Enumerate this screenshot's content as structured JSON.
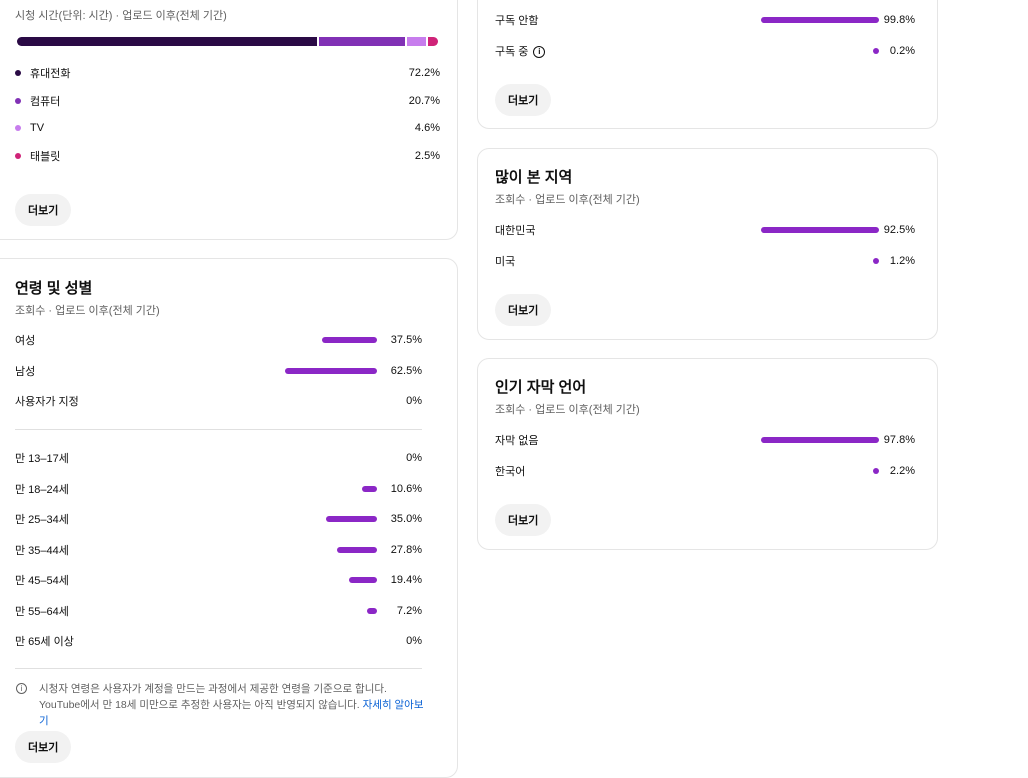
{
  "device": {
    "subtitle": "시청 시간(단위: 시간) · 업로드 이후(전체 기간)",
    "items": [
      {
        "label": "휴대전화",
        "value": 72.2,
        "display": "72.2%",
        "color": "#2a0a45"
      },
      {
        "label": "컴퓨터",
        "value": 20.7,
        "display": "20.7%",
        "color": "#8131b5"
      },
      {
        "label": "TV",
        "value": 4.6,
        "display": "4.6%",
        "color": "#c77ded"
      },
      {
        "label": "태블릿",
        "value": 2.5,
        "display": "2.5%",
        "color": "#cf2378"
      }
    ],
    "more": "더보기"
  },
  "age_gender": {
    "title": "연령 및 성별",
    "subtitle": "조회수 · 업로드 이후(전체 기간)",
    "gender": [
      {
        "label": "여성",
        "value": 37.5,
        "display": "37.5%"
      },
      {
        "label": "남성",
        "value": 62.5,
        "display": "62.5%"
      },
      {
        "label": "사용자가 지정",
        "value": 0,
        "display": "0%"
      }
    ],
    "ages": [
      {
        "label": "만 13–17세",
        "value": 0,
        "display": "0%"
      },
      {
        "label": "만 18–24세",
        "value": 10.6,
        "display": "10.6%"
      },
      {
        "label": "만 25–34세",
        "value": 35.0,
        "display": "35.0%"
      },
      {
        "label": "만 35–44세",
        "value": 27.8,
        "display": "27.8%"
      },
      {
        "label": "만 45–54세",
        "value": 19.4,
        "display": "19.4%"
      },
      {
        "label": "만 55–64세",
        "value": 7.2,
        "display": "7.2%"
      },
      {
        "label": "만 65세 이상",
        "value": 0,
        "display": "0%"
      }
    ],
    "note": "시청자 연령은 사용자가 계정을 만드는 과정에서 제공한 연령을 기준으로 합니다. YouTube에서 만 18세 미만으로 추정한 사용자는 아직 반영되지 않습니다.",
    "learn_more": "자세히 알아보기",
    "more": "더보기"
  },
  "subscription": {
    "items": [
      {
        "label": "구독 안함",
        "value": 99.8,
        "display": "99.8%"
      },
      {
        "label": "구독 중",
        "value": 0.2,
        "display": "0.2%"
      }
    ],
    "more": "더보기"
  },
  "geography": {
    "title": "많이 본 지역",
    "subtitle": "조회수 · 업로드 이후(전체 기간)",
    "items": [
      {
        "label": "대한민국",
        "value": 92.5,
        "display": "92.5%"
      },
      {
        "label": "미국",
        "value": 1.2,
        "display": "1.2%"
      }
    ],
    "more": "더보기"
  },
  "subtitles": {
    "title": "인기 자막 언어",
    "subtitle": "조회수 · 업로드 이후(전체 기간)",
    "items": [
      {
        "label": "자막 없음",
        "value": 97.8,
        "display": "97.8%"
      },
      {
        "label": "한국어",
        "value": 2.2,
        "display": "2.2%"
      }
    ],
    "more": "더보기"
  }
}
